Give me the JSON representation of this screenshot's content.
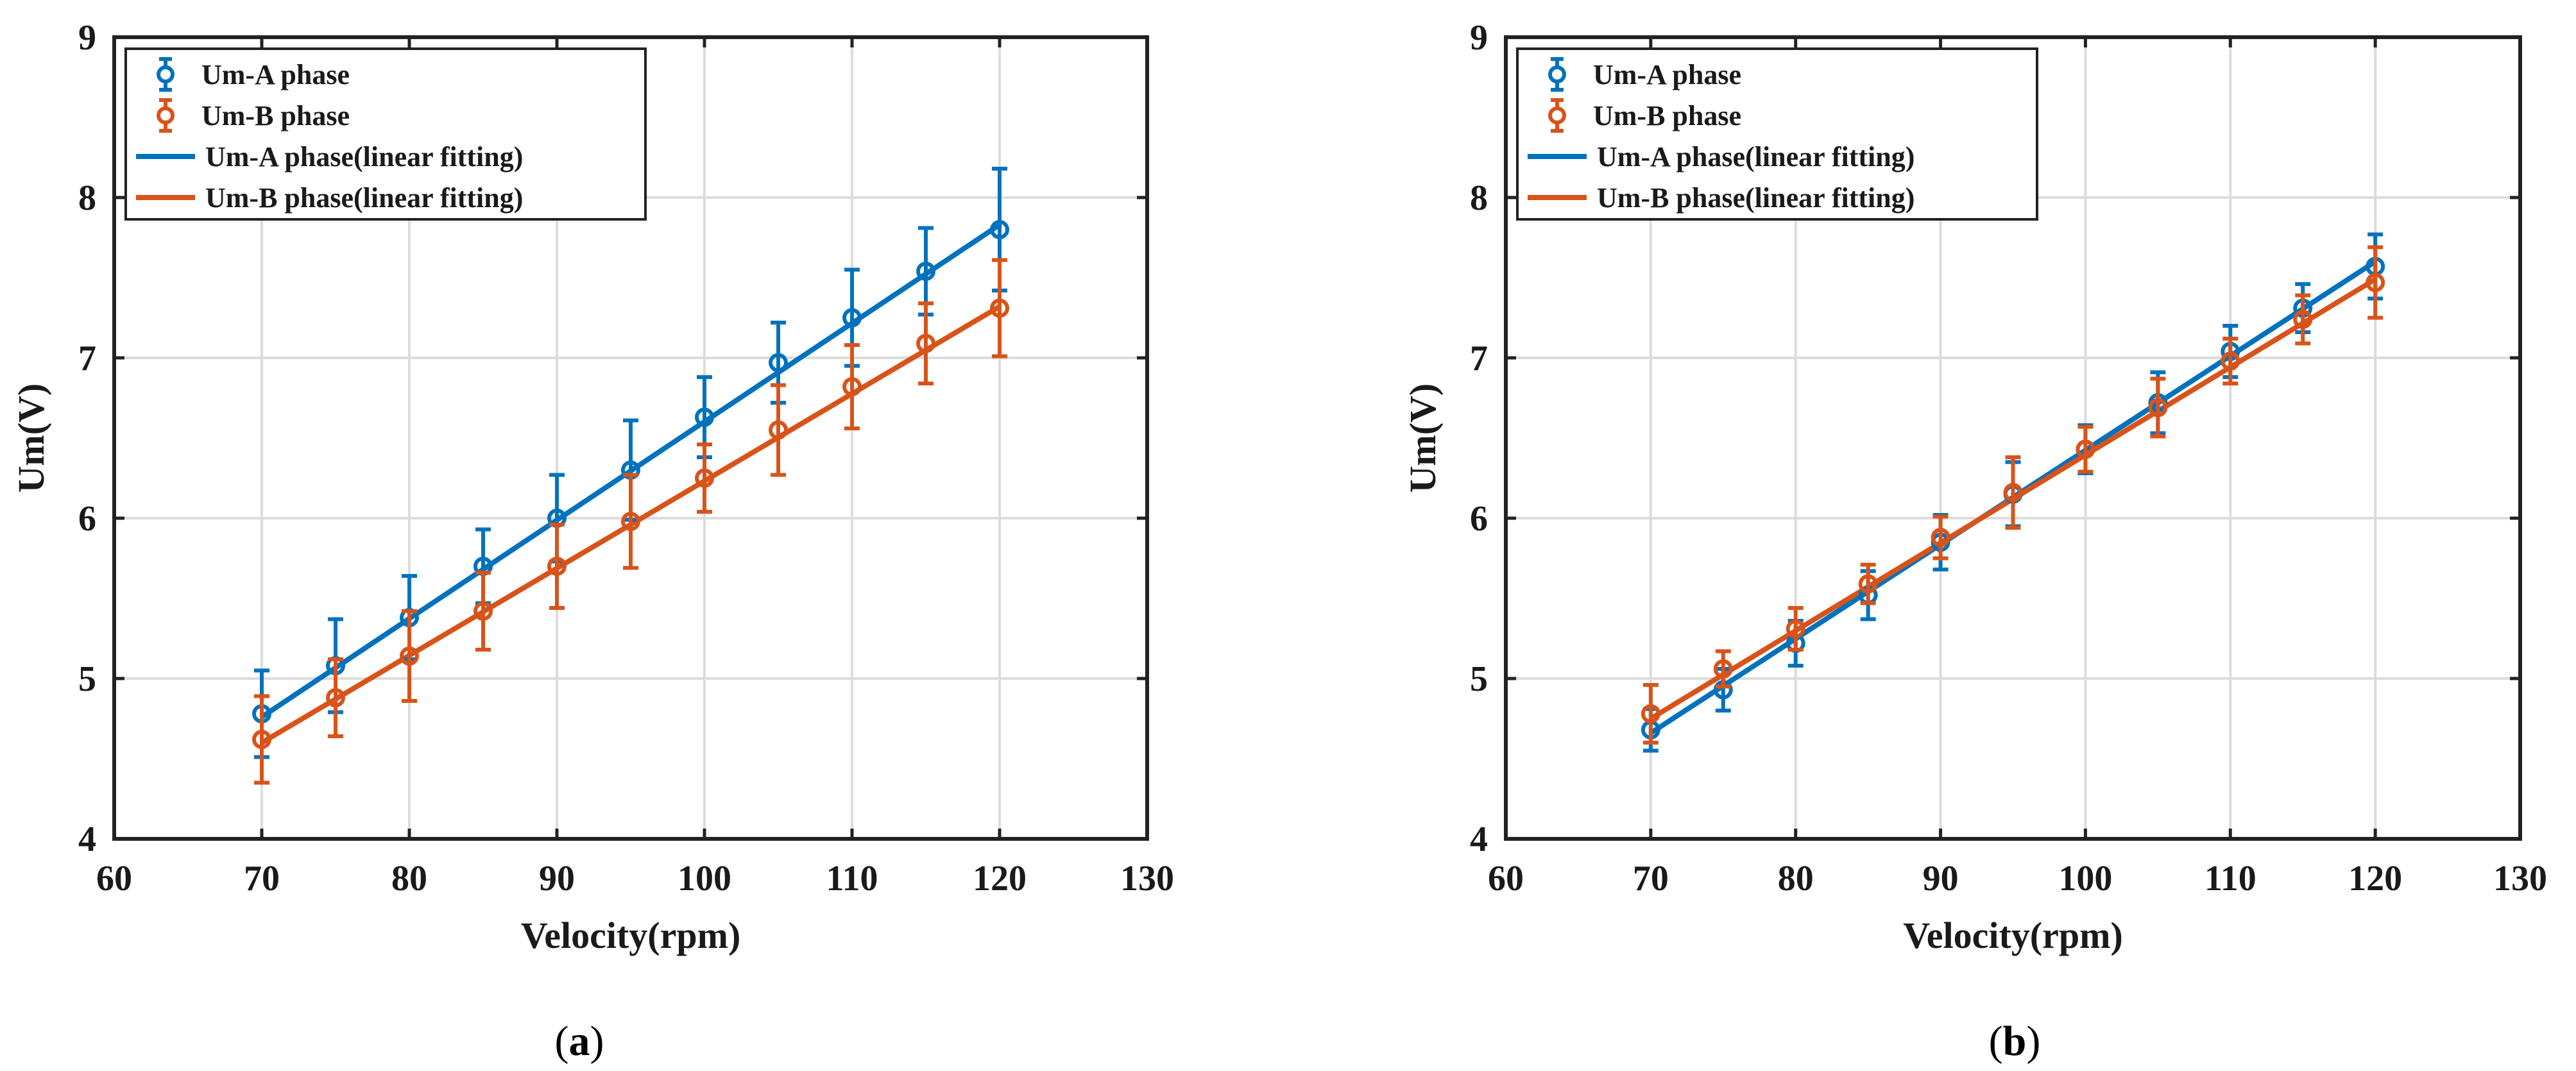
{
  "chart_data": [
    {
      "type": "line",
      "panel_label": "a",
      "caption": {
        "open": "(",
        "letter": "a",
        "close": ")"
      },
      "xlabel": "Velocity(rpm)",
      "ylabel": "Um(V)",
      "xlim": [
        60,
        130
      ],
      "ylim": [
        4,
        9
      ],
      "xticks": [
        60,
        70,
        80,
        90,
        100,
        110,
        120,
        130
      ],
      "yticks": [
        4,
        5,
        6,
        7,
        8,
        9
      ],
      "grid": true,
      "legend_position": "top-left",
      "legend": [
        "Um-A phase",
        "Um-B phase",
        "Um-A phase(linear fitting)",
        "Um-B phase(linear fitting)"
      ],
      "x": [
        70,
        75,
        80,
        85,
        90,
        95,
        100,
        105,
        110,
        115,
        120
      ],
      "series": [
        {
          "name": "Um-A phase",
          "kind": "errorbar",
          "color": "#0072BD",
          "values": [
            4.78,
            5.08,
            5.38,
            5.7,
            6.0,
            6.3,
            6.63,
            6.97,
            7.25,
            7.54,
            7.8
          ],
          "errors": [
            0.27,
            0.29,
            0.26,
            0.23,
            0.27,
            0.31,
            0.25,
            0.25,
            0.3,
            0.27,
            0.38
          ]
        },
        {
          "name": "Um-B phase",
          "kind": "errorbar",
          "color": "#D95319",
          "values": [
            4.62,
            4.88,
            5.14,
            5.42,
            5.7,
            5.98,
            6.25,
            6.55,
            6.82,
            7.09,
            7.31
          ],
          "errors": [
            0.27,
            0.24,
            0.28,
            0.24,
            0.26,
            0.29,
            0.21,
            0.28,
            0.26,
            0.25,
            0.3
          ]
        },
        {
          "name": "Um-A phase(linear fitting)",
          "kind": "fit",
          "color": "#0072BD",
          "x": [
            70,
            120
          ],
          "values": [
            4.76,
            7.83
          ]
        },
        {
          "name": "Um-B phase(linear fitting)",
          "kind": "fit",
          "color": "#D95319",
          "x": [
            70,
            120
          ],
          "values": [
            4.6,
            7.32
          ]
        }
      ]
    },
    {
      "type": "line",
      "panel_label": "b",
      "caption": {
        "open": "(",
        "letter": "b",
        "close": ")"
      },
      "xlabel": "Velocity(rpm)",
      "ylabel": "Um(V)",
      "xlim": [
        60,
        130
      ],
      "ylim": [
        4,
        9
      ],
      "xticks": [
        60,
        70,
        80,
        90,
        100,
        110,
        120,
        130
      ],
      "yticks": [
        4,
        5,
        6,
        7,
        8,
        9
      ],
      "grid": true,
      "legend_position": "top-left",
      "legend": [
        "Um-A phase",
        "Um-B phase",
        "Um-A phase(linear fitting)",
        "Um-B phase(linear fitting)"
      ],
      "x": [
        70,
        75,
        80,
        85,
        90,
        95,
        100,
        105,
        110,
        115,
        120
      ],
      "series": [
        {
          "name": "Um-A phase",
          "kind": "errorbar",
          "color": "#0072BD",
          "values": [
            4.68,
            4.93,
            5.22,
            5.52,
            5.85,
            6.15,
            6.43,
            6.72,
            7.04,
            7.31,
            7.57
          ],
          "errors": [
            0.13,
            0.13,
            0.14,
            0.15,
            0.17,
            0.2,
            0.15,
            0.19,
            0.16,
            0.15,
            0.2
          ]
        },
        {
          "name": "Um-B phase",
          "kind": "errorbar",
          "color": "#D95319",
          "values": [
            4.78,
            5.06,
            5.31,
            5.59,
            5.88,
            6.16,
            6.43,
            6.69,
            6.98,
            7.24,
            7.47
          ],
          "errors": [
            0.18,
            0.11,
            0.13,
            0.12,
            0.13,
            0.22,
            0.14,
            0.18,
            0.14,
            0.15,
            0.22
          ]
        },
        {
          "name": "Um-A phase(linear fitting)",
          "kind": "fit",
          "color": "#0072BD",
          "x": [
            70,
            120
          ],
          "values": [
            4.66,
            7.6
          ]
        },
        {
          "name": "Um-B phase(linear fitting)",
          "kind": "fit",
          "color": "#D95319",
          "x": [
            70,
            120
          ],
          "values": [
            4.75,
            7.49
          ]
        }
      ]
    }
  ]
}
